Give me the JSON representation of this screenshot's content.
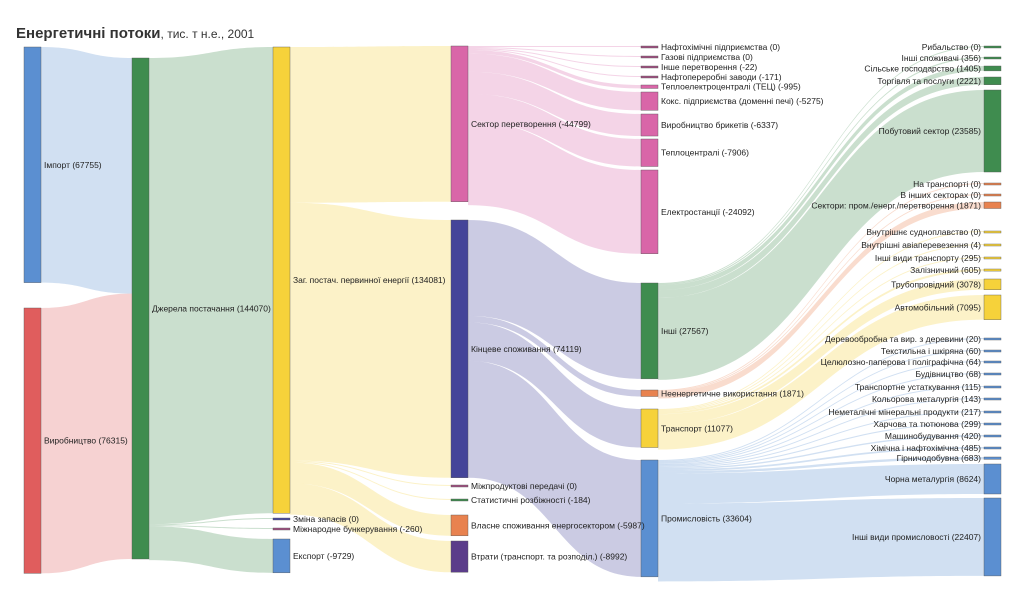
{
  "title": {
    "main": "Енергетичні потоки",
    "sub": ", тис. т н.е., 2001"
  },
  "chart_data": {
    "type": "sankey",
    "nodes": [
      {
        "id": "import",
        "label": "Імпорт (67755)",
        "value": 67755,
        "color": "#5b8fd1"
      },
      {
        "id": "production",
        "label": "Виробництво (76315)",
        "value": 76315,
        "color": "#e05d5d"
      },
      {
        "id": "supply",
        "label": "Джерела постачання (144070)",
        "value": 144070,
        "color": "#3f8c4f"
      },
      {
        "id": "tpes",
        "label": "Заг. постач. первинної енергії (134081)",
        "value": 134081,
        "color": "#f6d23a"
      },
      {
        "id": "stock",
        "label": "Зміна запасів (0)",
        "value": 0,
        "color": "#4a4aa0"
      },
      {
        "id": "bunkers",
        "label": "Міжнародне бункерування (-260)",
        "value": 260,
        "color": "#a05080"
      },
      {
        "id": "export",
        "label": "Експорт (-9729)",
        "value": 9729,
        "color": "#5b8fd1"
      },
      {
        "id": "transform",
        "label": "Сектор перетворення (-44799)",
        "value": 44799,
        "color": "#d966a8"
      },
      {
        "id": "final",
        "label": "Кінцеве споживання (74119)",
        "value": 74119,
        "color": "#444499"
      },
      {
        "id": "interprod",
        "label": "Міжпродуктові передачі (0)",
        "value": 0,
        "color": "#a05080"
      },
      {
        "id": "statdiff",
        "label": "Статистичні розбіжності (-184)",
        "value": 184,
        "color": "#3f8c4f"
      },
      {
        "id": "ownuse",
        "label": "Власне споживання енергосектором (-5987)",
        "value": 5987,
        "color": "#e8824f"
      },
      {
        "id": "losses",
        "label": "Втрати (транспорт. та розподіл.) (-8992)",
        "value": 8992,
        "color": "#5b3d8a"
      },
      {
        "id": "t_petchem",
        "label": "Нафтохімічні підприємства (0)",
        "value": 0,
        "color": "#a05080"
      },
      {
        "id": "t_gas",
        "label": "Газові підприємства (0)",
        "value": 0,
        "color": "#a05080"
      },
      {
        "id": "t_other",
        "label": "Інше перетворення (-22)",
        "value": 22,
        "color": "#a05080"
      },
      {
        "id": "t_refin",
        "label": "Нафтопереробні заводи (-171)",
        "value": 171,
        "color": "#a05080"
      },
      {
        "id": "t_chp",
        "label": "Теплоелектроцентралі (ТЕЦ) (-995)",
        "value": 995,
        "color": "#d966a8"
      },
      {
        "id": "t_coke",
        "label": "Кокс. підприємства (доменні печі) (-5275)",
        "value": 5275,
        "color": "#d966a8"
      },
      {
        "id": "t_brick",
        "label": "Виробництво брикетів (-6337)",
        "value": 6337,
        "color": "#d966a8"
      },
      {
        "id": "t_heat",
        "label": "Теплоцентралі (-7906)",
        "value": 7906,
        "color": "#d966a8"
      },
      {
        "id": "t_elec",
        "label": "Електростанції (-24092)",
        "value": 24092,
        "color": "#d966a8"
      },
      {
        "id": "f_other",
        "label": "Інші (27567)",
        "value": 27567,
        "color": "#3f8c4f"
      },
      {
        "id": "f_nonen",
        "label": "Неенергетичне використання (1871)",
        "value": 1871,
        "color": "#e8824f"
      },
      {
        "id": "f_trans",
        "label": "Транспорт (11077)",
        "value": 11077,
        "color": "#f6d23a"
      },
      {
        "id": "f_ind",
        "label": "Промисловість (33604)",
        "value": 33604,
        "color": "#5b8fd1"
      },
      {
        "id": "o_fish",
        "label": "Рибальство (0)",
        "value": 0,
        "color": "#3f8c4f"
      },
      {
        "id": "o_nspec",
        "label": "Інші споживачі (356)",
        "value": 356,
        "color": "#3f8c4f"
      },
      {
        "id": "o_agri",
        "label": "Сільське господарство (1405)",
        "value": 1405,
        "color": "#3f8c4f"
      },
      {
        "id": "o_comm",
        "label": "Торгівля та послуги (2221)",
        "value": 2221,
        "color": "#3f8c4f"
      },
      {
        "id": "o_resid",
        "label": "Побутовий сектор (23585)",
        "value": 23585,
        "color": "#3f8c4f"
      },
      {
        "id": "n_trans",
        "label": "На транспорті (0)",
        "value": 0,
        "color": "#e8824f"
      },
      {
        "id": "n_other",
        "label": "В інших секторах (0)",
        "value": 0,
        "color": "#e8824f"
      },
      {
        "id": "n_ind",
        "label": "Сектори: пром./енерг./перетворення (1871)",
        "value": 1871,
        "color": "#e8824f"
      },
      {
        "id": "tr_nav",
        "label": "Внутрішнє судноплавство (0)",
        "value": 0,
        "color": "#f6d23a"
      },
      {
        "id": "tr_air",
        "label": "Внутрішні авіаперевезення (4)",
        "value": 4,
        "color": "#f6d23a"
      },
      {
        "id": "tr_nspec",
        "label": "Інші види транспорту (295)",
        "value": 295,
        "color": "#f6d23a"
      },
      {
        "id": "tr_rail",
        "label": "Залізничний (605)",
        "value": 605,
        "color": "#f6d23a"
      },
      {
        "id": "tr_pipe",
        "label": "Трубопровідний (3078)",
        "value": 3078,
        "color": "#f6d23a"
      },
      {
        "id": "tr_road",
        "label": "Автомобільний (7095)",
        "value": 7095,
        "color": "#f6d23a"
      },
      {
        "id": "i_wood",
        "label": "Деревообробна та вир. з деревини (20)",
        "value": 20,
        "color": "#5b8fd1"
      },
      {
        "id": "i_text",
        "label": "Текстильна і шкіряна (60)",
        "value": 60,
        "color": "#5b8fd1"
      },
      {
        "id": "i_paper",
        "label": "Целюлозно-паперова і поліграфічна (64)",
        "value": 64,
        "color": "#5b8fd1"
      },
      {
        "id": "i_constr",
        "label": "Будівництво (68)",
        "value": 68,
        "color": "#5b8fd1"
      },
      {
        "id": "i_teq",
        "label": "Транспортне устаткування (115)",
        "value": 115,
        "color": "#5b8fd1"
      },
      {
        "id": "i_nfm",
        "label": "Кольорова металургія (143)",
        "value": 143,
        "color": "#5b8fd1"
      },
      {
        "id": "i_nmm",
        "label": "Неметалічні мінеральні продукти (217)",
        "value": 217,
        "color": "#5b8fd1"
      },
      {
        "id": "i_food",
        "label": "Харчова та тютюнова (299)",
        "value": 299,
        "color": "#5b8fd1"
      },
      {
        "id": "i_mach",
        "label": "Машинобудування (420)",
        "value": 420,
        "color": "#5b8fd1"
      },
      {
        "id": "i_chem",
        "label": "Хімічна і нафтохімічна (485)",
        "value": 485,
        "color": "#5b8fd1"
      },
      {
        "id": "i_mine",
        "label": "Гірничодобувна (683)",
        "value": 683,
        "color": "#5b8fd1"
      },
      {
        "id": "i_iron",
        "label": "Чорна металургія (8624)",
        "value": 8624,
        "color": "#5b8fd1"
      },
      {
        "id": "i_other",
        "label": "Інші види промисловості (22407)",
        "value": 22407,
        "color": "#5b8fd1"
      }
    ],
    "links": [
      {
        "source": "import",
        "target": "supply",
        "value": 67755
      },
      {
        "source": "production",
        "target": "supply",
        "value": 76315
      },
      {
        "source": "supply",
        "target": "tpes",
        "value": 134081
      },
      {
        "source": "supply",
        "target": "stock",
        "value": 0
      },
      {
        "source": "supply",
        "target": "bunkers",
        "value": 260
      },
      {
        "source": "supply",
        "target": "export",
        "value": 9729
      },
      {
        "source": "tpes",
        "target": "transform",
        "value": 44799
      },
      {
        "source": "tpes",
        "target": "final",
        "value": 74119
      },
      {
        "source": "tpes",
        "target": "interprod",
        "value": 0
      },
      {
        "source": "tpes",
        "target": "statdiff",
        "value": 184
      },
      {
        "source": "tpes",
        "target": "ownuse",
        "value": 5987
      },
      {
        "source": "tpes",
        "target": "losses",
        "value": 8992
      },
      {
        "source": "transform",
        "target": "t_petchem",
        "value": 0
      },
      {
        "source": "transform",
        "target": "t_gas",
        "value": 0
      },
      {
        "source": "transform",
        "target": "t_other",
        "value": 22
      },
      {
        "source": "transform",
        "target": "t_refin",
        "value": 171
      },
      {
        "source": "transform",
        "target": "t_chp",
        "value": 995
      },
      {
        "source": "transform",
        "target": "t_coke",
        "value": 5275
      },
      {
        "source": "transform",
        "target": "t_brick",
        "value": 6337
      },
      {
        "source": "transform",
        "target": "t_heat",
        "value": 7906
      },
      {
        "source": "transform",
        "target": "t_elec",
        "value": 24092
      },
      {
        "source": "final",
        "target": "f_other",
        "value": 27567
      },
      {
        "source": "final",
        "target": "f_nonen",
        "value": 1871
      },
      {
        "source": "final",
        "target": "f_trans",
        "value": 11077
      },
      {
        "source": "final",
        "target": "f_ind",
        "value": 33604
      },
      {
        "source": "f_other",
        "target": "o_fish",
        "value": 0
      },
      {
        "source": "f_other",
        "target": "o_nspec",
        "value": 356
      },
      {
        "source": "f_other",
        "target": "o_agri",
        "value": 1405
      },
      {
        "source": "f_other",
        "target": "o_comm",
        "value": 2221
      },
      {
        "source": "f_other",
        "target": "o_resid",
        "value": 23585
      },
      {
        "source": "f_nonen",
        "target": "n_trans",
        "value": 0
      },
      {
        "source": "f_nonen",
        "target": "n_other",
        "value": 0
      },
      {
        "source": "f_nonen",
        "target": "n_ind",
        "value": 1871
      },
      {
        "source": "f_trans",
        "target": "tr_nav",
        "value": 0
      },
      {
        "source": "f_trans",
        "target": "tr_air",
        "value": 4
      },
      {
        "source": "f_trans",
        "target": "tr_nspec",
        "value": 295
      },
      {
        "source": "f_trans",
        "target": "tr_rail",
        "value": 605
      },
      {
        "source": "f_trans",
        "target": "tr_pipe",
        "value": 3078
      },
      {
        "source": "f_trans",
        "target": "tr_road",
        "value": 7095
      },
      {
        "source": "f_ind",
        "target": "i_wood",
        "value": 20
      },
      {
        "source": "f_ind",
        "target": "i_text",
        "value": 60
      },
      {
        "source": "f_ind",
        "target": "i_paper",
        "value": 64
      },
      {
        "source": "f_ind",
        "target": "i_constr",
        "value": 68
      },
      {
        "source": "f_ind",
        "target": "i_teq",
        "value": 115
      },
      {
        "source": "f_ind",
        "target": "i_nfm",
        "value": 143
      },
      {
        "source": "f_ind",
        "target": "i_nmm",
        "value": 217
      },
      {
        "source": "f_ind",
        "target": "i_food",
        "value": 299
      },
      {
        "source": "f_ind",
        "target": "i_mach",
        "value": 420
      },
      {
        "source": "f_ind",
        "target": "i_chem",
        "value": 485
      },
      {
        "source": "f_ind",
        "target": "i_mine",
        "value": 683
      },
      {
        "source": "f_ind",
        "target": "i_iron",
        "value": 8624
      },
      {
        "source": "f_ind",
        "target": "i_other",
        "value": 22407
      }
    ]
  }
}
